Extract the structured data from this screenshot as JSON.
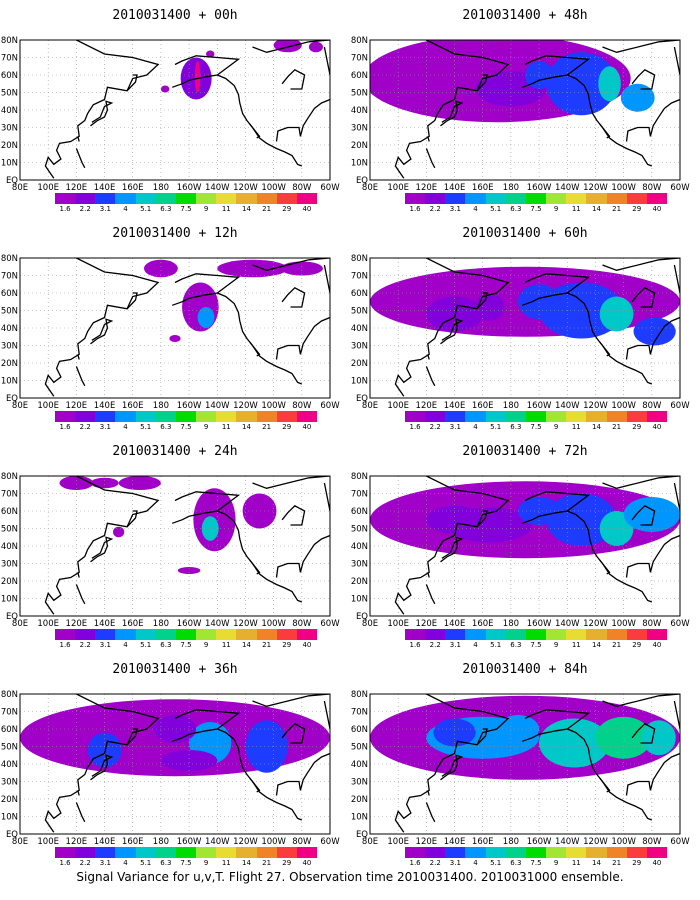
{
  "caption": "Signal Variance for u,v,T. Flight 27. Observation time 2010031400. 2010031000 ensemble.",
  "panels": [
    {
      "title": "2010031400 + 00h"
    },
    {
      "title": "2010031400 + 48h"
    },
    {
      "title": "2010031400 + 12h"
    },
    {
      "title": "2010031400 + 60h"
    },
    {
      "title": "2010031400 + 24h"
    },
    {
      "title": "2010031400 + 72h"
    },
    {
      "title": "2010031400 + 36h"
    },
    {
      "title": "2010031400 + 84h"
    }
  ],
  "axes": {
    "lon_labels": [
      "80E",
      "100E",
      "120E",
      "140E",
      "160E",
      "180",
      "160W",
      "140W",
      "120W",
      "100W",
      "80W",
      "60W"
    ],
    "lat_labels": [
      "80N",
      "70N",
      "60N",
      "50N",
      "40N",
      "30N",
      "20N",
      "10N",
      "EQ"
    ]
  },
  "colorbar": {
    "labels": [
      "1.6",
      "2.2",
      "3.1",
      "4",
      "5.1",
      "6.3",
      "7.5",
      "9",
      "11",
      "14",
      "21",
      "29",
      "40"
    ],
    "colors": [
      "#a000c8",
      "#8200dc",
      "#1e3cff",
      "#0096ff",
      "#00c8c8",
      "#00d28c",
      "#00dc00",
      "#a0e632",
      "#e6dc32",
      "#e6af2d",
      "#f08228",
      "#fa3c3c",
      "#f00082"
    ]
  },
  "domain": {
    "lon_min": 80,
    "lon_max": 300,
    "lat_min": 0,
    "lat_max": 80
  }
}
